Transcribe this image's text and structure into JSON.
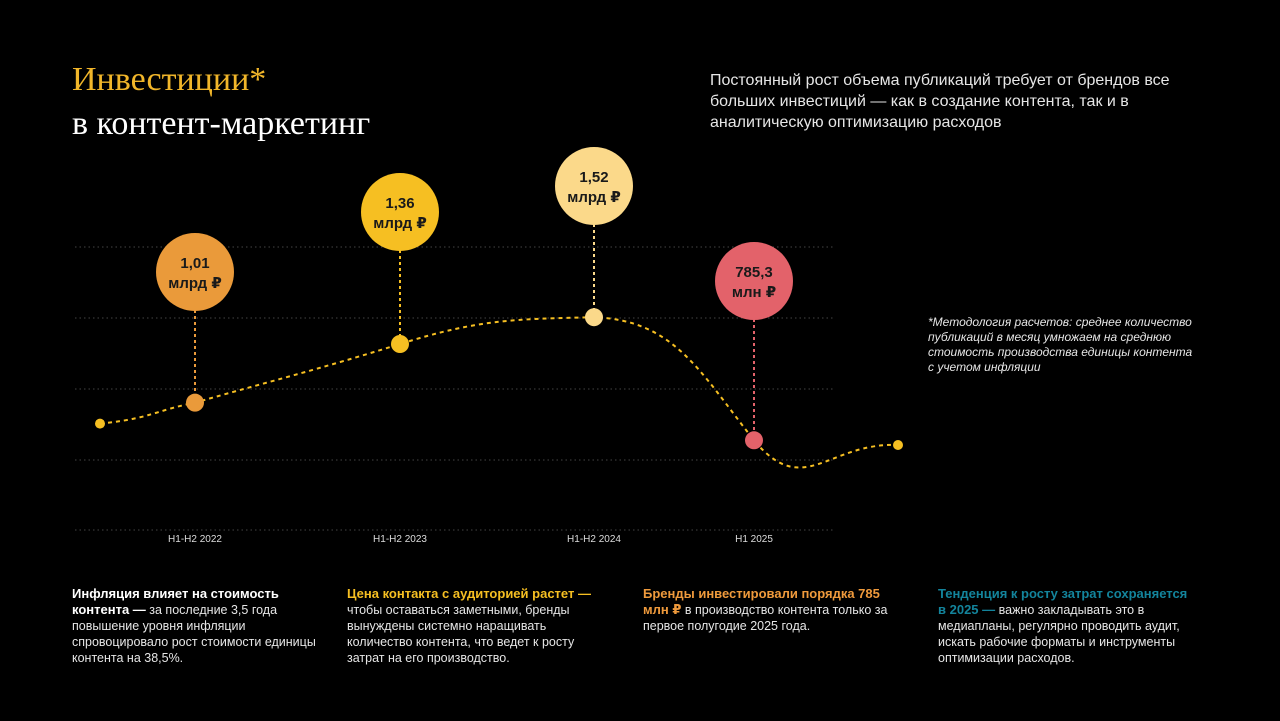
{
  "title": {
    "line1": "Инвестиции*",
    "line2": "в контент-маркетинг"
  },
  "intro": "Постоянный рост объема публикаций требует от брендов все больших инвестиций — как в создание контента, так и в аналитическую оптимизацию расходов",
  "methodology": "*Методология расчетов: среднее количество публикаций в месяц умножаем на среднюю стоимость производства единицы контента с учетом инфляции",
  "chart_data": {
    "type": "line",
    "categories": [
      "H1-H2 2022",
      "H1-H2 2023",
      "H1-H2 2024",
      "H1 2025"
    ],
    "series": [
      {
        "values": [
          1.01,
          1.36,
          1.52,
          0.7853
        ],
        "value_unit": "млрд ₽",
        "labels": [
          {
            "value": "1,01",
            "unit": "млрд ₽"
          },
          {
            "value": "1,36",
            "unit": "млрд ₽"
          },
          {
            "value": "1,52",
            "unit": "млрд ₽"
          },
          {
            "value": "785,3",
            "unit": "млн ₽"
          }
        ]
      }
    ],
    "point_colors": [
      "#ea9a3a",
      "#f6bf22",
      "#fbd98a",
      "#e3626a"
    ],
    "line_color": "#f6bf22",
    "ylim": [
      0.25,
      2.1
    ],
    "grid": true,
    "line_style": "dashed",
    "extrapolated_endpoints": true
  },
  "cards": [
    {
      "highlight": "Инфляция влияет на стоимость контента —",
      "text": " за последние 3,5 года повышение уровня инфляции спровоцировало рост стоимости единицы контента на 38,5%.",
      "color": "#ffffff"
    },
    {
      "highlight": "Цена контакта с аудиторией растет —",
      "text": " чтобы оставаться заметными, бренды вынуждены системно наращивать количество контента, что ведет к росту затрат на его производство.",
      "color": "#f6bf22"
    },
    {
      "highlight": "Бренды инвестировали порядка 785 млн ₽",
      "text": " в производство контента только за первое полугодие 2025 года.",
      "color": "#ef9a3c"
    },
    {
      "highlight": "Тенденция к росту затрат сохраняется в 2025 —",
      "text": " важно закладывать это в медиапланы, регулярно проводить аудит, искать рабочие форматы и инструменты оптимизации расходов.",
      "color": "#13849c"
    }
  ]
}
